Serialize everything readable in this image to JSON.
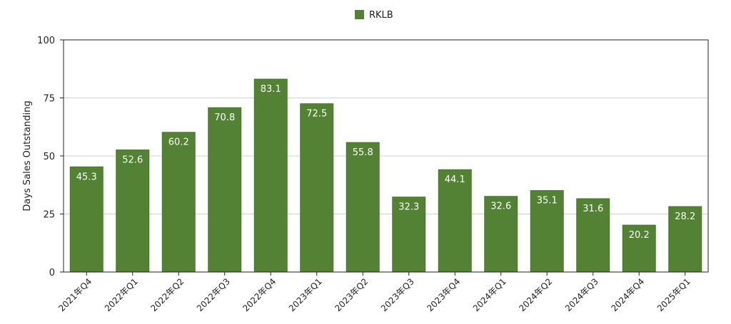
{
  "chart_data": {
    "type": "bar",
    "categories": [
      "2021年Q4",
      "2022年Q1",
      "2022年Q2",
      "2022年Q3",
      "2022年Q4",
      "2023年Q1",
      "2023年Q2",
      "2023年Q3",
      "2023年Q4",
      "2024年Q1",
      "2024年Q2",
      "2024年Q3",
      "2024年Q4",
      "2025年Q1"
    ],
    "series": [
      {
        "name": "RKLB",
        "values": [
          45.3,
          52.6,
          60.2,
          70.8,
          83.1,
          72.5,
          55.8,
          32.3,
          44.1,
          32.6,
          35.1,
          31.6,
          20.2,
          28.2
        ]
      }
    ],
    "title": "",
    "xlabel": "",
    "ylabel": "Days Sales Outstanding",
    "ylim": [
      0,
      100
    ],
    "yticks": [
      0,
      25,
      50,
      75,
      100
    ],
    "grid": true,
    "legend_position": "top-center",
    "bar_color": "#548235",
    "bar_edge_color": "#4a7530",
    "data_label_color": "#ffffff"
  }
}
